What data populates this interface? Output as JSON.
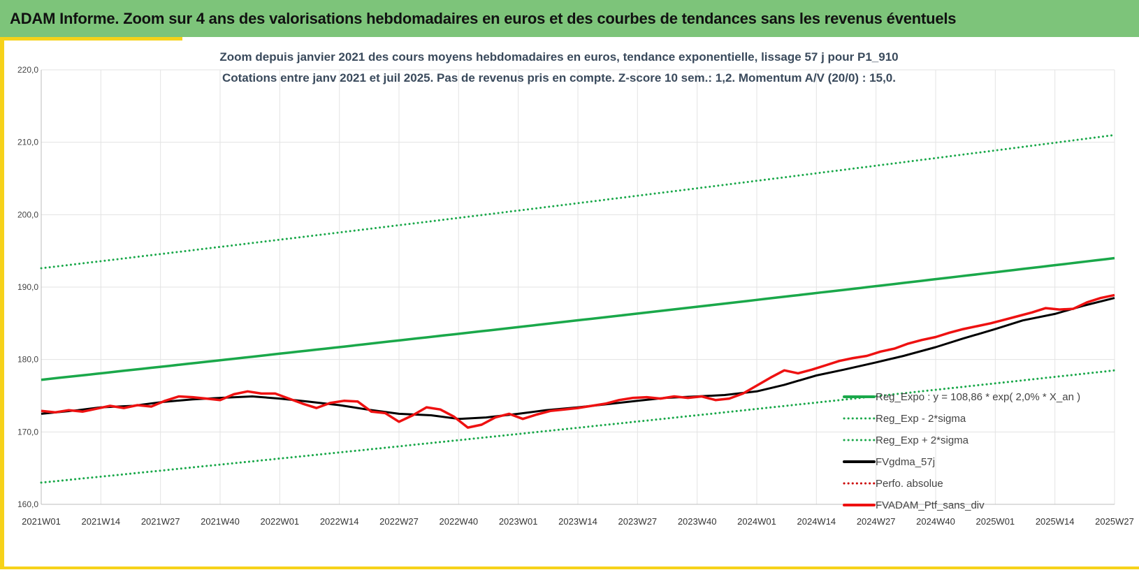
{
  "header": {
    "title": "ADAM Informe. Zoom sur 4 ans des valorisations hebdomadaires en euros et des courbes de tendances sans les revenus éventuels"
  },
  "colors": {
    "header_bg": "#7dc47a",
    "accent": "#f6d21a",
    "trend": "#1aa84a",
    "smoothed": "#000000",
    "portfolio": "#ee1111",
    "perfo": "#cc0000",
    "grid": "#e3e3e3"
  },
  "chart_data": {
    "type": "line",
    "title_line1": "Zoom depuis janvier 2021 des cours moyens hebdomadaires  en euros, tendance exponentielle, lissage 57 j pour P1_910",
    "title_line2": "Cotations entre janv 2021 et juil 2025. Pas de revenus pris en compte. Z-score 10 sem.: 1,2. Momentum A/V (20/0) : 15,0.",
    "xlabel": "",
    "ylabel": "",
    "ylim": [
      160,
      220
    ],
    "yticks": [
      "160,0",
      "170,0",
      "180,0",
      "190,0",
      "200,0",
      "210,0",
      "220,0"
    ],
    "x_ticks": [
      "2021W01",
      "2021W14",
      "2021W27",
      "2021W40",
      "2022W01",
      "2022W14",
      "2022W27",
      "2022W40",
      "2023W01",
      "2023W14",
      "2023W27",
      "2023W40",
      "2024W01",
      "2024W14",
      "2024W27",
      "2024W40",
      "2025W01",
      "2025W14",
      "2025W27"
    ],
    "grid": true,
    "legend_position": "bottom-right",
    "trend": {
      "name": "Reg_Expo : y = 108,86 * exp( 2,0% * X_an )",
      "weeks": [
        0,
        234
      ],
      "values": [
        177.2,
        194.0
      ]
    },
    "lower_band": {
      "name": "Reg_Exp - 2*sigma",
      "weeks": [
        0,
        234
      ],
      "values": [
        163.0,
        178.5
      ]
    },
    "upper_band": {
      "name": "Reg_Exp + 2*sigma",
      "weeks": [
        0,
        234
      ],
      "values": [
        192.6,
        211.0
      ]
    },
    "smoothed": {
      "name": "FVgdma_57j",
      "weeks": [
        0,
        8,
        13,
        20,
        26,
        33,
        39,
        46,
        52,
        58,
        65,
        71,
        78,
        85,
        91,
        97,
        104,
        110,
        117,
        123,
        130,
        136,
        143,
        149,
        156,
        162,
        169,
        175,
        182,
        188,
        195,
        201,
        208,
        214,
        221,
        227,
        234
      ],
      "values": [
        172.5,
        173.0,
        173.4,
        173.6,
        174.1,
        174.5,
        174.7,
        174.9,
        174.6,
        174.2,
        173.7,
        173.1,
        172.5,
        172.3,
        171.8,
        172.0,
        172.5,
        173.0,
        173.4,
        173.8,
        174.3,
        174.7,
        174.9,
        175.1,
        175.6,
        176.5,
        177.8,
        178.6,
        179.6,
        180.5,
        181.7,
        182.9,
        184.2,
        185.4,
        186.3,
        187.4,
        188.5
      ]
    },
    "perfo_absolue": {
      "name": "Perfo. absolue",
      "values": []
    },
    "portfolio": {
      "name": "FVADAM_Ptf_sans_div",
      "weeks": [
        0,
        3,
        6,
        9,
        12,
        15,
        18,
        21,
        24,
        27,
        30,
        33,
        36,
        39,
        42,
        45,
        48,
        51,
        54,
        57,
        60,
        63,
        66,
        69,
        72,
        75,
        78,
        81,
        84,
        87,
        90,
        93,
        96,
        99,
        102,
        105,
        108,
        111,
        114,
        117,
        120,
        123,
        126,
        129,
        132,
        135,
        138,
        141,
        144,
        147,
        150,
        153,
        156,
        159,
        162,
        165,
        168,
        171,
        174,
        177,
        180,
        183,
        186,
        189,
        192,
        195,
        198,
        201,
        204,
        207,
        210,
        213,
        216,
        219,
        222,
        225,
        228,
        231,
        234
      ],
      "values": [
        172.9,
        172.7,
        173.0,
        172.8,
        173.2,
        173.6,
        173.3,
        173.7,
        173.5,
        174.3,
        174.9,
        174.8,
        174.6,
        174.4,
        175.2,
        175.6,
        175.3,
        175.3,
        174.6,
        173.9,
        173.3,
        174.0,
        174.3,
        174.2,
        172.8,
        172.6,
        171.4,
        172.3,
        173.4,
        173.1,
        172.1,
        170.6,
        171.0,
        172.0,
        172.5,
        171.8,
        172.4,
        172.9,
        173.1,
        173.3,
        173.6,
        173.9,
        174.4,
        174.7,
        174.8,
        174.6,
        174.9,
        174.7,
        174.9,
        174.4,
        174.6,
        175.3,
        176.4,
        177.5,
        178.5,
        178.1,
        178.6,
        179.2,
        179.8,
        180.2,
        180.5,
        181.1,
        181.5,
        182.2,
        182.7,
        183.1,
        183.7,
        184.2,
        184.6,
        185.0,
        185.5,
        186.0,
        186.5,
        187.1,
        186.9,
        187.0,
        187.9,
        188.5,
        188.9
      ]
    }
  }
}
